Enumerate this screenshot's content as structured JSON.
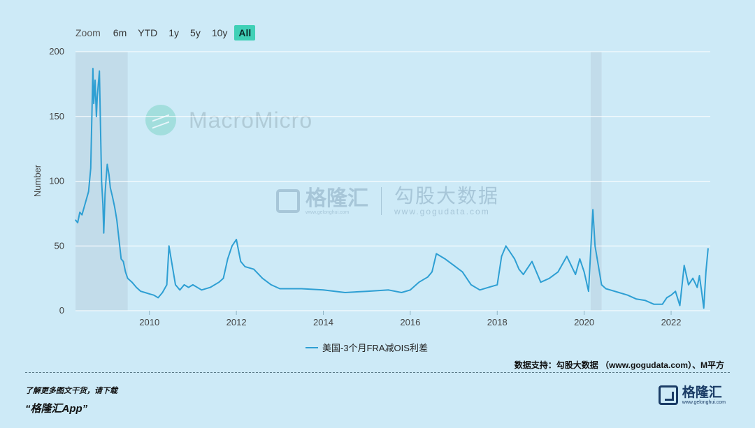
{
  "zoom": {
    "label": "Zoom",
    "buttons": [
      "6m",
      "YTD",
      "1y",
      "5y",
      "10y",
      "All"
    ],
    "active": "All"
  },
  "watermarks": {
    "macromicro": "MacroMicro",
    "gelonghui_name": "格隆汇",
    "gelonghui_url": "www.gelonghui.com",
    "gogu_name": "勾股大数据",
    "gogu_url": "www.gogudata.com"
  },
  "colors": {
    "line": "#2e9fd3",
    "recession": "#c2dcea",
    "active_button": "#3fd0b6",
    "background": "#cdeaf7"
  },
  "chart_data": {
    "type": "line",
    "ylabel": "Number",
    "ylim": [
      0,
      200
    ],
    "yticks": [
      0,
      50,
      100,
      150,
      200
    ],
    "xlim": [
      2008.3,
      2022.9
    ],
    "xticks": [
      2010,
      2012,
      2014,
      2016,
      2018,
      2020,
      2022
    ],
    "grid": true,
    "legend_position": "bottom-center",
    "shaded_periods": [
      [
        2008.3,
        2009.5
      ],
      [
        2020.15,
        2020.4
      ]
    ],
    "series": [
      {
        "name": "美国-3个月FRA减OIS利差",
        "x": [
          2008.3,
          2008.35,
          2008.4,
          2008.45,
          2008.5,
          2008.6,
          2008.65,
          2008.7,
          2008.72,
          2008.75,
          2008.78,
          2008.8,
          2008.85,
          2008.9,
          2008.93,
          2008.95,
          2008.98,
          2009.0,
          2009.03,
          2009.07,
          2009.1,
          2009.15,
          2009.2,
          2009.25,
          2009.3,
          2009.35,
          2009.4,
          2009.45,
          2009.5,
          2009.6,
          2009.7,
          2009.8,
          2009.9,
          2010.0,
          2010.1,
          2010.2,
          2010.3,
          2010.4,
          2010.45,
          2010.5,
          2010.6,
          2010.7,
          2010.8,
          2010.9,
          2011.0,
          2011.2,
          2011.4,
          2011.6,
          2011.7,
          2011.8,
          2011.9,
          2012.0,
          2012.1,
          2012.2,
          2012.4,
          2012.6,
          2012.8,
          2013.0,
          2013.5,
          2014.0,
          2014.5,
          2015.0,
          2015.5,
          2015.8,
          2016.0,
          2016.2,
          2016.4,
          2016.5,
          2016.6,
          2016.8,
          2017.0,
          2017.2,
          2017.4,
          2017.6,
          2017.8,
          2018.0,
          2018.1,
          2018.2,
          2018.3,
          2018.4,
          2018.5,
          2018.6,
          2018.8,
          2019.0,
          2019.2,
          2019.4,
          2019.6,
          2019.7,
          2019.8,
          2019.9,
          2020.0,
          2020.1,
          2020.2,
          2020.25,
          2020.3,
          2020.4,
          2020.5,
          2020.6,
          2020.8,
          2021.0,
          2021.2,
          2021.4,
          2021.6,
          2021.8,
          2021.9,
          2022.0,
          2022.1,
          2022.2,
          2022.3,
          2022.4,
          2022.5,
          2022.6,
          2022.65,
          2022.7,
          2022.75,
          2022.8,
          2022.85
        ],
        "y": [
          70,
          68,
          76,
          74,
          80,
          92,
          110,
          187,
          160,
          178,
          150,
          165,
          185,
          100,
          82,
          60,
          90,
          100,
          113,
          105,
          95,
          88,
          80,
          70,
          55,
          40,
          38,
          30,
          25,
          22,
          18,
          15,
          14,
          13,
          12,
          10,
          14,
          20,
          50,
          40,
          20,
          16,
          20,
          18,
          20,
          16,
          18,
          22,
          25,
          40,
          50,
          55,
          38,
          34,
          32,
          25,
          20,
          17,
          17,
          16,
          14,
          15,
          16,
          14,
          16,
          22,
          26,
          30,
          44,
          40,
          35,
          30,
          20,
          16,
          18,
          20,
          42,
          50,
          45,
          40,
          32,
          28,
          38,
          22,
          25,
          30,
          42,
          35,
          28,
          40,
          30,
          15,
          78,
          50,
          40,
          20,
          17,
          16,
          14,
          12,
          9,
          8,
          5,
          5,
          10,
          12,
          15,
          4,
          35,
          20,
          25,
          18,
          27,
          15,
          2,
          30,
          48
        ]
      }
    ]
  },
  "source_text": "数据支持：勾股大数据 （www.gogudata.com）、M平方",
  "promo": {
    "line1": "了解更多图文干货，请下载",
    "line2": "“格隆汇App”"
  },
  "brand": {
    "name": "格隆汇",
    "url": "www.gelonghui.com"
  }
}
